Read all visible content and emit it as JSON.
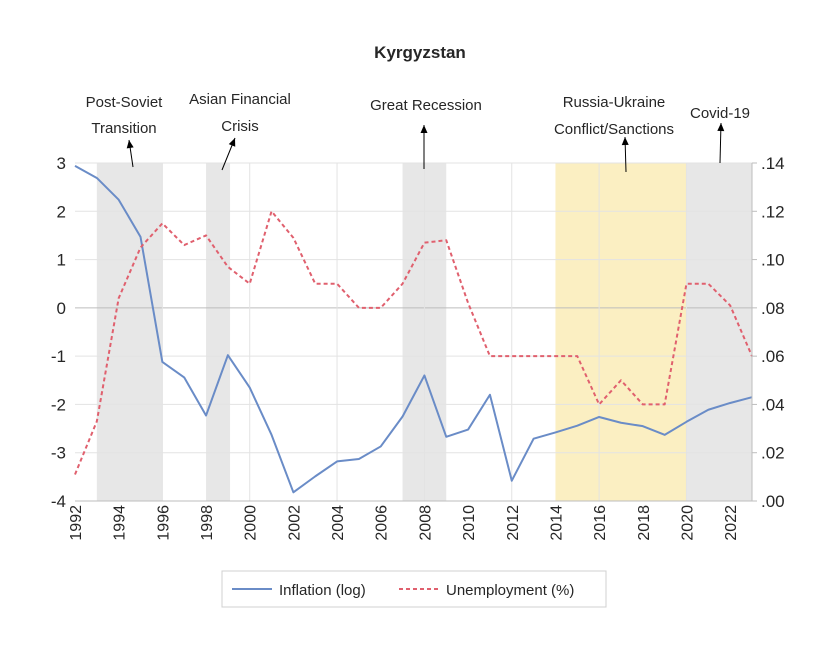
{
  "chart_data": {
    "type": "line",
    "title": "Kyrgyzstan",
    "x": [
      1992,
      1993,
      1994,
      1995,
      1996,
      1997,
      1998,
      1999,
      2000,
      2001,
      2002,
      2003,
      2004,
      2005,
      2006,
      2007,
      2008,
      2009,
      2010,
      2011,
      2012,
      2013,
      2014,
      2015,
      2016,
      2017,
      2018,
      2019,
      2020,
      2021,
      2022,
      2023
    ],
    "x_ticks": [
      "1992",
      "1994",
      "1996",
      "1998",
      "2000",
      "2002",
      "2004",
      "2006",
      "2008",
      "2010",
      "2012",
      "2014",
      "2016",
      "2018",
      "2020",
      "2022"
    ],
    "y_left": {
      "range": [
        -4,
        3
      ],
      "ticks": [
        "3",
        "2",
        "1",
        "0",
        "-1",
        "-2",
        "-3",
        "-4"
      ]
    },
    "y_right": {
      "range": [
        0,
        0.14
      ],
      "ticks": [
        ".14",
        ".12",
        ".10",
        ".08",
        ".06",
        ".04",
        ".02",
        ".00"
      ]
    },
    "grid": true,
    "legend_position": "bottom",
    "series": [
      {
        "name": "Inflation (log)",
        "axis": "left",
        "color": "#6a8cc7",
        "style": "solid",
        "values": [
          2.94,
          2.69,
          2.24,
          1.47,
          -1.12,
          -1.44,
          -2.23,
          -0.98,
          -1.65,
          -2.63,
          -3.82,
          -3.49,
          -3.18,
          -3.13,
          -2.87,
          -2.25,
          -1.4,
          -2.67,
          -2.52,
          -1.8,
          -3.58,
          -2.71,
          -2.58,
          -2.44,
          -2.26,
          -2.38,
          -2.45,
          -2.63,
          -2.36,
          -2.11,
          -1.97,
          -1.85
        ]
      },
      {
        "name": "Unemployment (%)",
        "axis": "right",
        "color": "#e0606e",
        "style": "dashed",
        "values": [
          0.011,
          0.033,
          0.084,
          0.105,
          0.115,
          0.106,
          0.11,
          0.097,
          0.09,
          0.12,
          0.109,
          0.09,
          0.09,
          0.08,
          0.08,
          0.09,
          0.107,
          0.108,
          0.082,
          0.06,
          0.06,
          0.06,
          0.06,
          0.06,
          0.04,
          0.05,
          0.04,
          0.04,
          0.09,
          0.09,
          0.081,
          0.06
        ]
      }
    ],
    "shaded_periods": [
      {
        "start": 1993,
        "end": 1996,
        "color": "#e7e7e7"
      },
      {
        "start": 1998,
        "end": 1999.1,
        "color": "#e7e7e7"
      },
      {
        "start": 2007,
        "end": 2009,
        "color": "#e7e7e7"
      },
      {
        "start": 2014,
        "end": 2020,
        "color": "#fbefc2"
      },
      {
        "start": 2020,
        "end": 2023,
        "color": "#e7e7e7"
      }
    ],
    "annotations": [
      {
        "lines": [
          "Post-Soviet",
          "Transition"
        ]
      },
      {
        "lines": [
          "Asian Financial",
          "Crisis"
        ]
      },
      {
        "lines": [
          "Great Recession"
        ]
      },
      {
        "lines": [
          "Russia-Ukraine",
          "Conflict/Sanctions"
        ]
      },
      {
        "lines": [
          "Covid-19"
        ]
      }
    ]
  }
}
